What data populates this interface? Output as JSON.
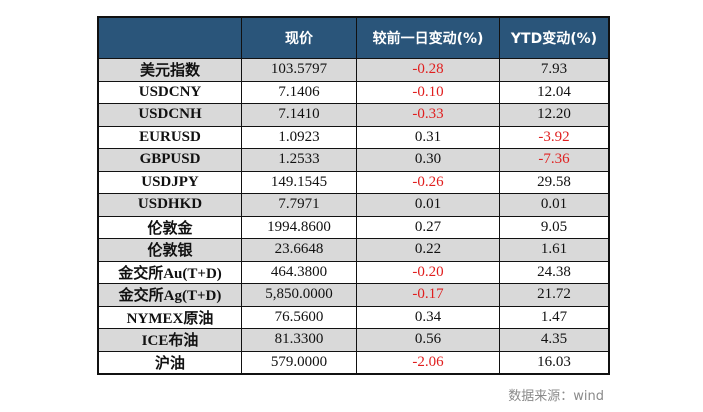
{
  "table": {
    "headers": [
      "",
      "现价",
      "较前一日变动(%)",
      "YTD变动(%)"
    ],
    "rows": [
      {
        "name": "美元指数",
        "price": "103.5797",
        "day_change": "-0.28",
        "ytd_change": "7.93"
      },
      {
        "name": "USDCNY",
        "price": "7.1406",
        "day_change": "-0.10",
        "ytd_change": "12.04"
      },
      {
        "name": "USDCNH",
        "price": "7.1410",
        "day_change": "-0.33",
        "ytd_change": "12.20"
      },
      {
        "name": "EURUSD",
        "price": "1.0923",
        "day_change": "0.31",
        "ytd_change": "-3.92"
      },
      {
        "name": "GBPUSD",
        "price": "1.2533",
        "day_change": "0.30",
        "ytd_change": "-7.36"
      },
      {
        "name": "USDJPY",
        "price": "149.1545",
        "day_change": "-0.26",
        "ytd_change": "29.58"
      },
      {
        "name": "USDHKD",
        "price": "7.7971",
        "day_change": "0.01",
        "ytd_change": "0.01"
      },
      {
        "name": "伦敦金",
        "price": "1994.8600",
        "day_change": "0.27",
        "ytd_change": "9.05"
      },
      {
        "name": "伦敦银",
        "price": "23.6648",
        "day_change": "0.22",
        "ytd_change": "1.61"
      },
      {
        "name": "金交所Au(T+D)",
        "price": "464.3800",
        "day_change": "-0.20",
        "ytd_change": "24.38"
      },
      {
        "name": "金交所Ag(T+D)",
        "price": "5,850.0000",
        "day_change": "-0.17",
        "ytd_change": "21.72"
      },
      {
        "name": "NYMEX原油",
        "price": "76.5600",
        "day_change": "0.34",
        "ytd_change": "1.47"
      },
      {
        "name": "ICE布油",
        "price": "81.3300",
        "day_change": "0.56",
        "ytd_change": "4.35"
      },
      {
        "name": "沪油",
        "price": "579.0000",
        "day_change": "-2.06",
        "ytd_change": "16.03"
      }
    ]
  },
  "colors": {
    "header_bg": "#2a557a",
    "negative": "#e01f1f",
    "stripe": "#d9d9d9"
  },
  "source_note": "数据来源：wind"
}
